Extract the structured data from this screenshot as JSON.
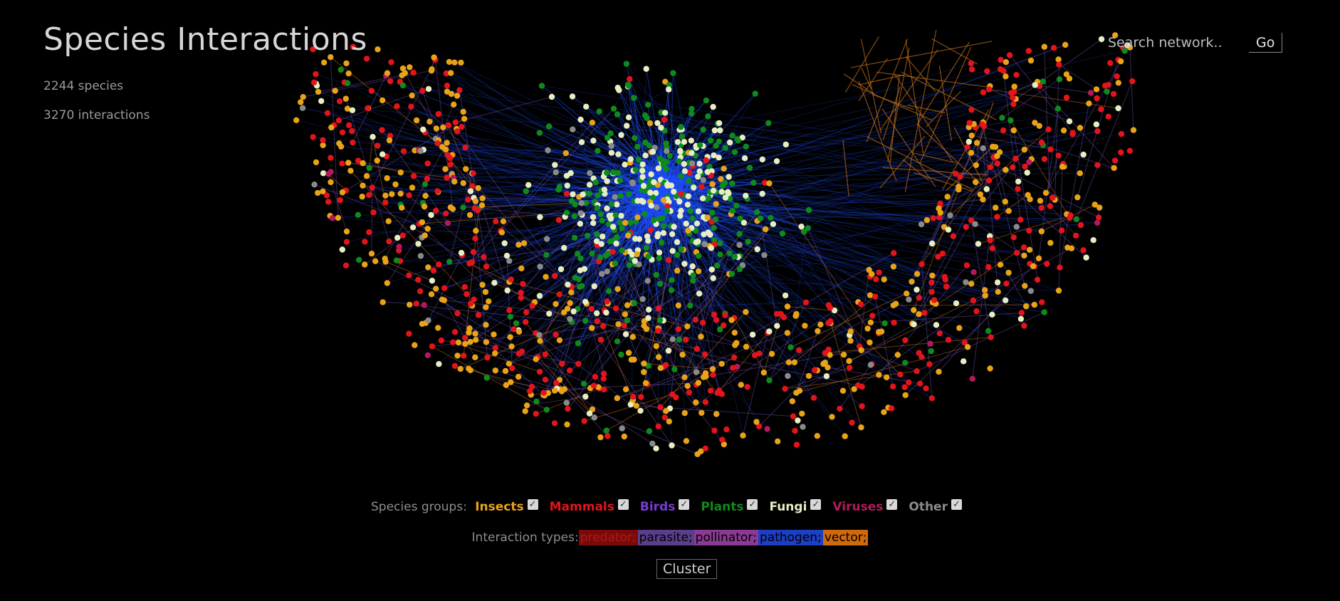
{
  "header": {
    "title": "Species Interactions",
    "species_count": "2244 species",
    "interaction_count": "3270 interactions"
  },
  "search": {
    "placeholder": "Search network..",
    "go_label": "Go"
  },
  "species_groups": {
    "label": "Species groups:",
    "items": [
      {
        "label": "Insects",
        "color": "#e8a317",
        "checked": true
      },
      {
        "label": "Mammals",
        "color": "#e3141b",
        "checked": true
      },
      {
        "label": "Birds",
        "color": "#7a3ad6",
        "checked": true
      },
      {
        "label": "Plants",
        "color": "#0e8a1e",
        "checked": true
      },
      {
        "label": "Fungi",
        "color": "#e6eec2",
        "checked": true
      },
      {
        "label": "Viruses",
        "color": "#b3195e",
        "checked": true
      },
      {
        "label": "Other",
        "color": "#8a8a8a",
        "checked": true
      }
    ]
  },
  "interaction_types": {
    "label": "Interaction types:",
    "items": [
      {
        "label": "predator;",
        "color": "#7a0a0a",
        "text_color": "#b01717"
      },
      {
        "label": "parasite;",
        "color": "#5a3e8c",
        "text_color": "#000000"
      },
      {
        "label": "pollinator;",
        "color": "#8b3a94",
        "text_color": "#000000"
      },
      {
        "label": "pathogen;",
        "color": "#1c3fc4",
        "text_color": "#000000"
      },
      {
        "label": "vector;",
        "color": "#d0690c",
        "text_color": "#000000"
      }
    ]
  },
  "cluster_label": "Cluster",
  "theme": {
    "background": "#000000",
    "pathogen_edge": "#1f4fff",
    "parasite_edge": "#6a4fb0",
    "vector_edge": "#d0761a"
  }
}
